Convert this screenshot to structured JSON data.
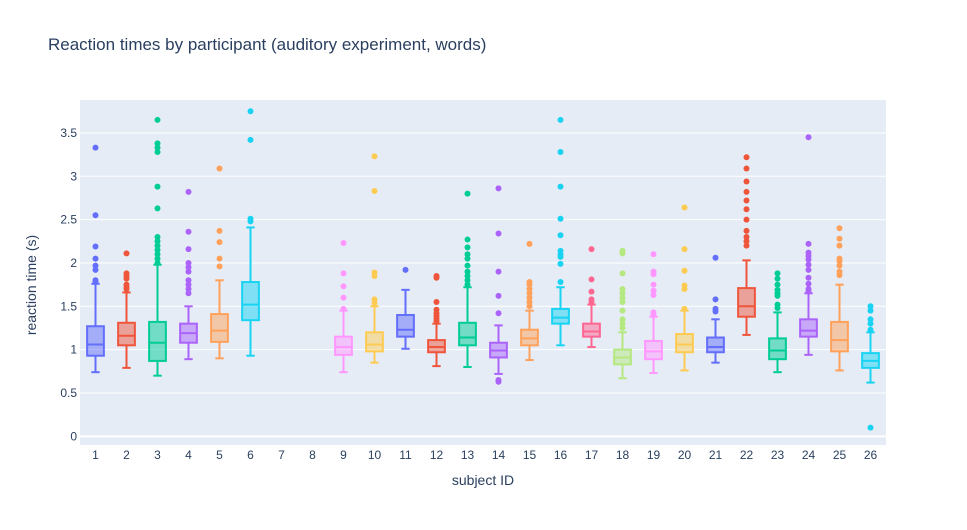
{
  "chart_data": {
    "type": "box",
    "title": "Reaction times by participant (auditory experiment,  words)",
    "xlabel": "subject ID",
    "ylabel": "reaction time (s)",
    "categories": [
      "1",
      "2",
      "3",
      "4",
      "5",
      "6",
      "7",
      "8",
      "9",
      "10",
      "11",
      "12",
      "13",
      "14",
      "15",
      "16",
      "17",
      "18",
      "19",
      "20",
      "21",
      "22",
      "23",
      "24",
      "25",
      "26"
    ],
    "y_ticks": [
      0,
      0.5,
      1,
      1.5,
      2,
      2.5,
      3,
      3.5
    ],
    "ylim": [
      -0.1,
      3.88
    ],
    "grid": true,
    "palette": [
      "#636efa",
      "#EF553B",
      "#00cc96",
      "#ab63fa",
      "#FFA15A",
      "#19d3f3",
      "#FF6692",
      "#B6E880",
      "#FF97FF",
      "#FECB52"
    ],
    "series": [
      {
        "subject": "1",
        "min": 0.74,
        "q1": 0.93,
        "median": 1.06,
        "q3": 1.27,
        "max": 1.76,
        "outliers": [
          1.78,
          1.8,
          1.92,
          1.97,
          2.05,
          2.19,
          2.55,
          3.33
        ]
      },
      {
        "subject": "2",
        "min": 0.79,
        "q1": 1.05,
        "median": 1.16,
        "q3": 1.31,
        "max": 1.66,
        "outliers": [
          1.7,
          1.72,
          1.75,
          1.82,
          1.85,
          1.88,
          2.11
        ]
      },
      {
        "subject": "3",
        "min": 0.7,
        "q1": 0.87,
        "median": 1.08,
        "q3": 1.32,
        "max": 1.98,
        "outliers": [
          2.0,
          2.05,
          2.1,
          2.15,
          2.2,
          2.25,
          2.3,
          2.63,
          2.88,
          3.28,
          3.33,
          3.38,
          3.65
        ]
      },
      {
        "subject": "4",
        "min": 0.89,
        "q1": 1.08,
        "median": 1.19,
        "q3": 1.3,
        "max": 1.5,
        "outliers": [
          1.65,
          1.7,
          1.75,
          1.8,
          1.9,
          1.95,
          2.0,
          2.16,
          2.36,
          2.82
        ]
      },
      {
        "subject": "5",
        "min": 0.9,
        "q1": 1.09,
        "median": 1.22,
        "q3": 1.41,
        "max": 1.8,
        "outliers": [
          1.96,
          2.05,
          2.24,
          2.37,
          3.09
        ]
      },
      {
        "subject": "6",
        "min": 0.93,
        "q1": 1.34,
        "median": 1.52,
        "q3": 1.78,
        "max": 2.41,
        "outliers": [
          2.48,
          2.51,
          3.42,
          3.75
        ]
      },
      {
        "subject": "7",
        "empty": true
      },
      {
        "subject": "8",
        "empty": true
      },
      {
        "subject": "9",
        "min": 0.74,
        "q1": 0.94,
        "median": 1.03,
        "q3": 1.15,
        "max": 1.45,
        "outliers": [
          1.47,
          1.6,
          1.73,
          1.88,
          2.23
        ]
      },
      {
        "subject": "10",
        "min": 0.85,
        "q1": 0.98,
        "median": 1.06,
        "q3": 1.2,
        "max": 1.5,
        "outliers": [
          1.54,
          1.58,
          1.85,
          1.89,
          2.83,
          3.23
        ]
      },
      {
        "subject": "11",
        "min": 1.01,
        "q1": 1.15,
        "median": 1.23,
        "q3": 1.4,
        "max": 1.69,
        "outliers": [
          1.92
        ]
      },
      {
        "subject": "12",
        "min": 0.81,
        "q1": 0.97,
        "median": 1.03,
        "q3": 1.11,
        "max": 1.3,
        "outliers": [
          1.33,
          1.36,
          1.39,
          1.42,
          1.46,
          1.55,
          1.83,
          1.85
        ]
      },
      {
        "subject": "13",
        "min": 0.8,
        "q1": 1.05,
        "median": 1.14,
        "q3": 1.31,
        "max": 1.72,
        "outliers": [
          1.75,
          1.8,
          1.85,
          1.9,
          1.97,
          2.05,
          2.1,
          2.18,
          2.27,
          2.8
        ]
      },
      {
        "subject": "14",
        "min": 0.72,
        "q1": 0.91,
        "median": 0.99,
        "q3": 1.08,
        "max": 1.28,
        "outliers": [
          0.63,
          0.65,
          1.42,
          1.62,
          1.9,
          2.34,
          2.86
        ]
      },
      {
        "subject": "15",
        "min": 0.88,
        "q1": 1.05,
        "median": 1.13,
        "q3": 1.23,
        "max": 1.45,
        "outliers": [
          1.5,
          1.55,
          1.6,
          1.65,
          1.7,
          1.75,
          1.78,
          2.22
        ]
      },
      {
        "subject": "16",
        "min": 1.05,
        "q1": 1.3,
        "median": 1.37,
        "q3": 1.47,
        "max": 1.72,
        "outliers": [
          1.78,
          1.99,
          2.07,
          2.1,
          2.14,
          2.32,
          2.51,
          2.88,
          3.28,
          3.65
        ]
      },
      {
        "subject": "17",
        "min": 1.03,
        "q1": 1.15,
        "median": 1.21,
        "q3": 1.3,
        "max": 1.52,
        "outliers": [
          1.55,
          1.58,
          1.67,
          1.81,
          2.16
        ]
      },
      {
        "subject": "18",
        "min": 0.67,
        "q1": 0.83,
        "median": 0.91,
        "q3": 1.0,
        "max": 1.2,
        "outliers": [
          1.25,
          1.3,
          1.35,
          1.45,
          1.55,
          1.6,
          1.65,
          1.7,
          1.88,
          2.11,
          2.14
        ]
      },
      {
        "subject": "19",
        "min": 0.73,
        "q1": 0.89,
        "median": 0.98,
        "q3": 1.1,
        "max": 1.38,
        "outliers": [
          1.4,
          1.43,
          1.63,
          1.68,
          1.75,
          1.87,
          1.9,
          2.1
        ]
      },
      {
        "subject": "20",
        "min": 0.76,
        "q1": 0.97,
        "median": 1.06,
        "q3": 1.18,
        "max": 1.45,
        "outliers": [
          1.47,
          1.7,
          1.74,
          1.91,
          2.16,
          2.64
        ]
      },
      {
        "subject": "21",
        "min": 0.85,
        "q1": 0.97,
        "median": 1.03,
        "q3": 1.14,
        "max": 1.35,
        "outliers": [
          1.44,
          1.47,
          1.58,
          2.06
        ]
      },
      {
        "subject": "22",
        "min": 1.17,
        "q1": 1.38,
        "median": 1.5,
        "q3": 1.71,
        "max": 2.03,
        "outliers": [
          2.2,
          2.25,
          2.3,
          2.37,
          2.5,
          2.62,
          2.72,
          2.82,
          2.94,
          3.09,
          3.22
        ]
      },
      {
        "subject": "23",
        "min": 0.74,
        "q1": 0.89,
        "median": 0.99,
        "q3": 1.13,
        "max": 1.43,
        "outliers": [
          1.48,
          1.52,
          1.62,
          1.65,
          1.69,
          1.75,
          1.82,
          1.88
        ]
      },
      {
        "subject": "24",
        "min": 0.94,
        "q1": 1.15,
        "median": 1.22,
        "q3": 1.35,
        "max": 1.65,
        "outliers": [
          1.67,
          1.7,
          1.76,
          1.83,
          1.92,
          1.98,
          2.04,
          2.08,
          2.12,
          2.22,
          3.45
        ]
      },
      {
        "subject": "25",
        "min": 0.76,
        "q1": 0.98,
        "median": 1.11,
        "q3": 1.32,
        "max": 1.75,
        "outliers": [
          1.86,
          1.9,
          1.97,
          2.02,
          2.05,
          2.2,
          2.28,
          2.4
        ]
      },
      {
        "subject": "26",
        "min": 0.62,
        "q1": 0.79,
        "median": 0.87,
        "q3": 0.96,
        "max": 1.2,
        "outliers": [
          0.1,
          1.23,
          1.3,
          1.35,
          1.45,
          1.5
        ]
      }
    ]
  }
}
